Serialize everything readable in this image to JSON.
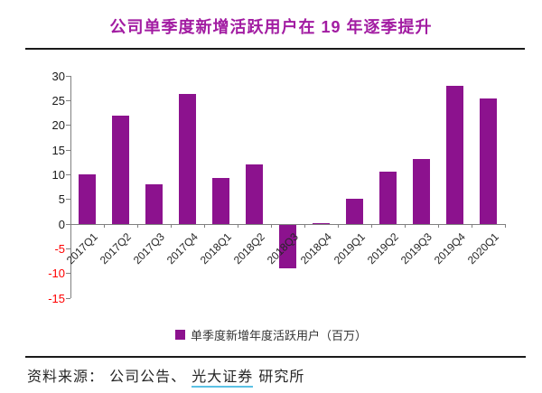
{
  "header": {
    "title": "公司单季度新增活跃用户在 19 年逐季提升"
  },
  "chart_data": {
    "type": "bar",
    "title": "公司单季度新增活跃用户在 19 年逐季提升",
    "categories": [
      "2017Q1",
      "2017Q2",
      "2017Q3",
      "2017Q4",
      "2018Q1",
      "2018Q2",
      "2018Q3",
      "2018Q4",
      "2019Q1",
      "2019Q2",
      "2019Q3",
      "2019Q4",
      "2020Q1"
    ],
    "values": [
      10,
      22,
      8,
      26.3,
      9.4,
      12.1,
      -8.7,
      0.2,
      5.2,
      10.7,
      13.2,
      27.9,
      25.4
    ],
    "ylim": [
      -15,
      30
    ],
    "ytick_step": 5,
    "grid": false,
    "legend_position": "bottom",
    "legend": "单季度新增年度活跃用户（百万）",
    "colors": {
      "bar": "#8C128E",
      "title": "#A21CA2",
      "positive_tick_label": "#1a1a1a",
      "negative_tick_label": "#FF0000",
      "axis": "#808080"
    }
  },
  "legend": {
    "label": "单季度新增年度活跃用户（百万）"
  },
  "footer": {
    "prefix": "资料来源：",
    "item1": "公司公告、",
    "link_text": "光大证券",
    "suffix": "研究所"
  }
}
